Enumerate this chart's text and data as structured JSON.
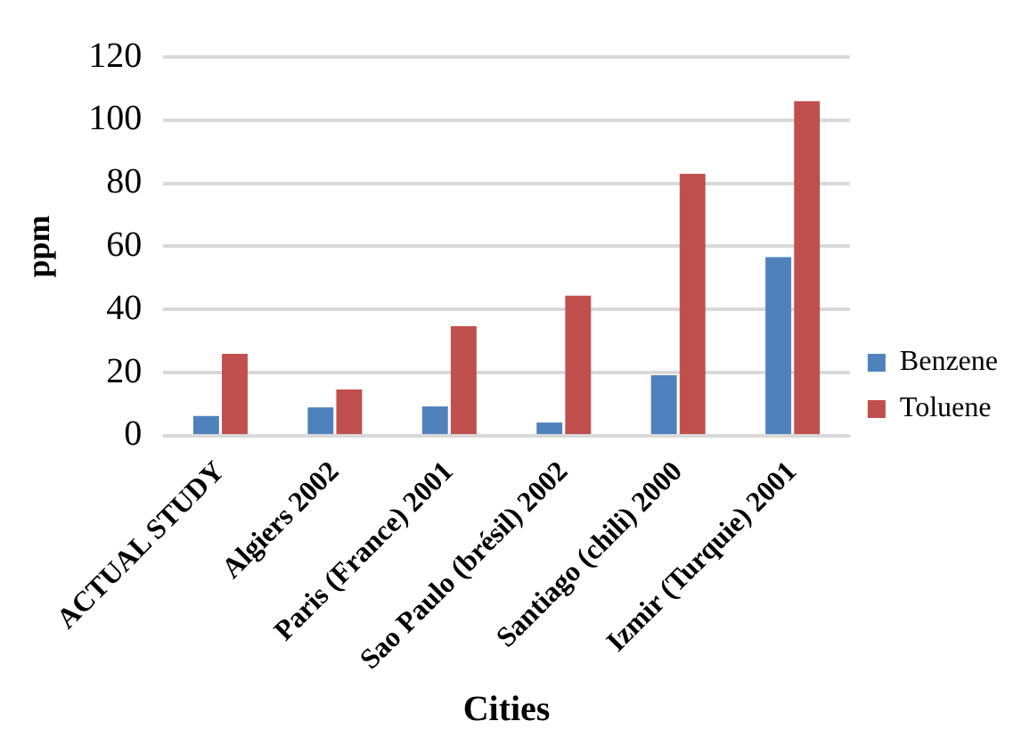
{
  "chart_data": {
    "type": "bar",
    "xlabel": "Cities",
    "ylabel": "ppm",
    "categories": [
      "ACTUAL STUDY",
      "Algiers 2002",
      "Paris (France) 2001",
      "Sao Paulo (brésil) 2002",
      "Santiago (chili) 2000",
      "Izmir (Turquie) 2001"
    ],
    "series": [
      {
        "name": "Benzene",
        "color": "#4f81bd",
        "values": [
          6.3,
          9,
          9.3,
          4.2,
          19.2,
          56.6
        ]
      },
      {
        "name": "Toluene",
        "color": "#c0504d",
        "values": [
          26,
          14.7,
          34.7,
          44.4,
          83,
          106
        ]
      }
    ],
    "ylim": [
      0,
      120
    ],
    "yticks": [
      0,
      20,
      40,
      60,
      80,
      100,
      120
    ],
    "grid": "y",
    "legend": "right"
  }
}
